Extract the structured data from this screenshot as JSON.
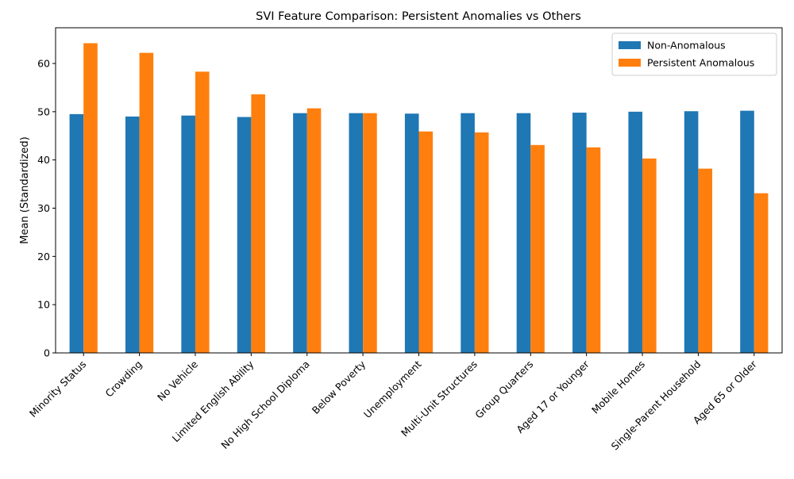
{
  "chart_data": {
    "type": "bar",
    "title": "SVI Feature Comparison: Persistent Anomalies vs Others",
    "xlabel": "",
    "ylabel": "Mean (Standardized)",
    "ylim": [
      0,
      67.4
    ],
    "yticks": [
      0,
      10,
      20,
      30,
      40,
      50,
      60
    ],
    "grid": false,
    "legend_position": "top-right",
    "categories": [
      "Minority Status",
      "Crowding",
      "No Vehicle",
      "Limited English Ability",
      "No High School Diploma",
      "Below Poverty",
      "Unemployment",
      "Multi-Unit Structures",
      "Group Quarters",
      "Aged 17 or Younger",
      "Mobile Homes",
      "Single-Parent Household",
      "Aged 65 or Older"
    ],
    "series": [
      {
        "name": "Non-Anomalous",
        "color": "#1f77b4",
        "values": [
          49.5,
          49.0,
          49.2,
          48.9,
          49.7,
          49.7,
          49.6,
          49.7,
          49.7,
          49.8,
          50.0,
          50.1,
          50.2
        ]
      },
      {
        "name": "Persistent Anomalous",
        "color": "#ff7f0e",
        "values": [
          64.2,
          62.2,
          58.3,
          53.6,
          50.7,
          49.7,
          45.9,
          45.7,
          43.1,
          42.6,
          40.3,
          38.2,
          33.1
        ]
      }
    ]
  }
}
